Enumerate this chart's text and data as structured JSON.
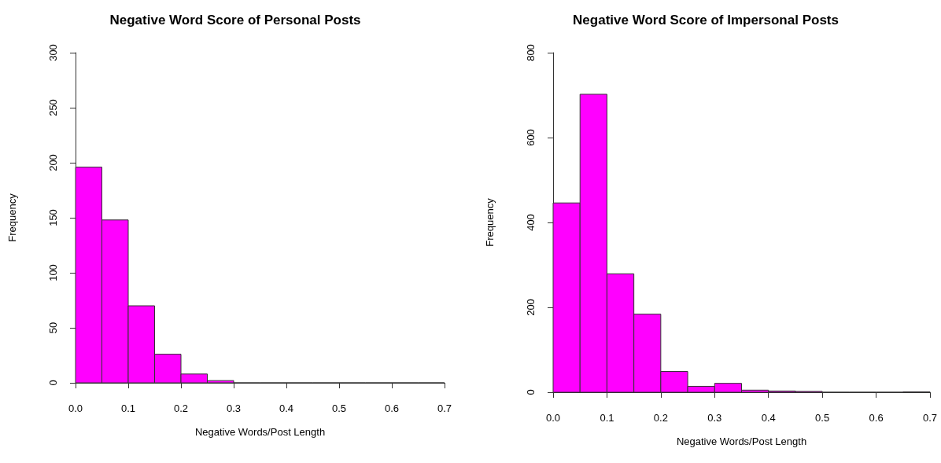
{
  "chart_data": [
    {
      "type": "histogram",
      "title": "Negative Word Score of Personal Posts",
      "xlabel": "Negative Words/Post Length",
      "ylabel": "Frequency",
      "color": "#ff00ff",
      "bins": [
        0,
        0.05,
        0.1,
        0.15,
        0.2,
        0.25,
        0.3,
        0.35,
        0.4,
        0.45,
        0.5,
        0.55,
        0.6,
        0.65,
        0.7
      ],
      "values": [
        196,
        148,
        70,
        26,
        8,
        2,
        0,
        0,
        0,
        0,
        0,
        0,
        0,
        0
      ],
      "xlim": [
        0,
        0.7
      ],
      "xticks": [
        {
          "value": 0,
          "label": "0.0"
        },
        0.1,
        0.2,
        0.3,
        0.4,
        0.5,
        0.6,
        0.7
      ],
      "ylim": [
        0,
        300
      ],
      "yticks": [
        0,
        50,
        100,
        150,
        200,
        250,
        300
      ]
    },
    {
      "type": "histogram",
      "title": "Negative Word Score of Impersonal Posts",
      "xlabel": "Negative Words/Post Length",
      "ylabel": "Frequency",
      "color": "#ff00ff",
      "bins": [
        0,
        0.05,
        0.1,
        0.15,
        0.2,
        0.25,
        0.3,
        0.35,
        0.4,
        0.45,
        0.5,
        0.55,
        0.6,
        0.65,
        0.7
      ],
      "values": [
        446,
        702,
        279,
        184,
        49,
        14,
        21,
        5,
        3,
        2,
        0,
        0,
        0,
        1
      ],
      "xlim": [
        0,
        0.7
      ],
      "xticks": [
        {
          "value": 0,
          "label": "0.0"
        },
        0.1,
        0.2,
        0.3,
        0.4,
        0.5,
        0.6,
        0.7
      ],
      "ylim": [
        0,
        800
      ],
      "yticks": [
        0,
        200,
        400,
        600,
        800
      ]
    }
  ]
}
